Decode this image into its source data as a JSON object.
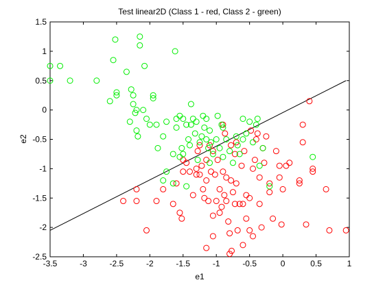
{
  "chart_data": {
    "type": "scatter",
    "title": "Test linear2D (Class 1 - red, Class 2 - green)",
    "xlabel": "e1",
    "ylabel": "e2",
    "xlim": [
      -3.5,
      1
    ],
    "ylim": [
      -2.5,
      1.5
    ],
    "xticks": [
      "-3.5",
      "-3",
      "-2.5",
      "-2",
      "-1.5",
      "-1",
      "-0.5",
      "0",
      "0.5",
      "1"
    ],
    "yticks": [
      "-2.5",
      "-2",
      "-1.5",
      "-1",
      "-0.5",
      "0",
      "0.5",
      "1",
      "1.5"
    ],
    "grid": false,
    "series": [
      {
        "color": "#ff0000",
        "marker": "circle-open",
        "points": [
          [
            -2.4,
            -1.55
          ],
          [
            -2.2,
            -1.55
          ],
          [
            -2.2,
            -1.35
          ],
          [
            -2.05,
            -2.05
          ],
          [
            -1.9,
            -1.55
          ],
          [
            -1.8,
            -1.35
          ],
          [
            -1.65,
            -1.6
          ],
          [
            -1.6,
            -1.25
          ],
          [
            -1.55,
            -1.75
          ],
          [
            -1.52,
            -1.85
          ],
          [
            -1.5,
            -1.05
          ],
          [
            -1.5,
            -0.85
          ],
          [
            -1.45,
            -0.9
          ],
          [
            -1.4,
            -1.05
          ],
          [
            -1.35,
            -1.45
          ],
          [
            -1.3,
            -1.1
          ],
          [
            -1.3,
            -1.0
          ],
          [
            -1.28,
            -0.7
          ],
          [
            -1.25,
            -1.1
          ],
          [
            -1.25,
            -0.6
          ],
          [
            -1.22,
            -0.95
          ],
          [
            -1.2,
            -1.35
          ],
          [
            -1.18,
            -1.5
          ],
          [
            -1.15,
            -1.2
          ],
          [
            -1.15,
            -0.85
          ],
          [
            -1.15,
            -2.35
          ],
          [
            -1.12,
            -1.55
          ],
          [
            -1.1,
            -0.6
          ],
          [
            -1.08,
            -1.05
          ],
          [
            -1.05,
            -0.7
          ],
          [
            -1.05,
            -1.8
          ],
          [
            -1.05,
            -2.15
          ],
          [
            -1.02,
            -1.1
          ],
          [
            -1.0,
            -1.55
          ],
          [
            -0.98,
            -0.85
          ],
          [
            -0.95,
            -1.35
          ],
          [
            -0.95,
            -1.75
          ],
          [
            -0.92,
            -1.65
          ],
          [
            -0.9,
            -0.25
          ],
          [
            -0.9,
            -1.05
          ],
          [
            -0.88,
            -1.45
          ],
          [
            -0.87,
            -0.4
          ],
          [
            -0.85,
            -1.15
          ],
          [
            -0.85,
            -1.55
          ],
          [
            -0.82,
            -1.9
          ],
          [
            -0.8,
            -2.1
          ],
          [
            -0.8,
            -2.45
          ],
          [
            -0.78,
            -0.6
          ],
          [
            -0.78,
            -1.2
          ],
          [
            -0.77,
            -2.4
          ],
          [
            -0.75,
            -1.4
          ],
          [
            -0.72,
            -0.75
          ],
          [
            -0.72,
            -1.6
          ],
          [
            -0.7,
            -0.55
          ],
          [
            -0.7,
            -1.25
          ],
          [
            -0.68,
            -2.05
          ],
          [
            -0.65,
            -1.6
          ],
          [
            -0.62,
            -0.95
          ],
          [
            -0.6,
            -1.6
          ],
          [
            -0.6,
            -2.3
          ],
          [
            -0.58,
            -0.7
          ],
          [
            -0.55,
            -1.45
          ],
          [
            -0.55,
            -1.85
          ],
          [
            -0.5,
            -1.5
          ],
          [
            -0.5,
            -2.05
          ],
          [
            -0.48,
            -0.35
          ],
          [
            -0.45,
            -1.0
          ],
          [
            -0.45,
            -2.15
          ],
          [
            -0.42,
            -0.85
          ],
          [
            -0.4,
            -0.5
          ],
          [
            -0.38,
            -0.4
          ],
          [
            -0.35,
            -1.15
          ],
          [
            -0.35,
            -1.6
          ],
          [
            -0.32,
            -2.0
          ],
          [
            -0.3,
            -0.65
          ],
          [
            -0.28,
            -0.9
          ],
          [
            -0.25,
            -0.45
          ],
          [
            -0.2,
            -1.25
          ],
          [
            -0.2,
            -1.4
          ],
          [
            -0.15,
            -1.85
          ],
          [
            -0.1,
            -0.7
          ],
          [
            -0.05,
            -0.95
          ],
          [
            -0.05,
            -1.15
          ],
          [
            -0.02,
            -1.95
          ],
          [
            0.0,
            -1.35
          ],
          [
            0.05,
            -0.95
          ],
          [
            0.1,
            -0.9
          ],
          [
            0.25,
            -1.2
          ],
          [
            0.25,
            -1.25
          ],
          [
            0.3,
            -0.25
          ],
          [
            0.3,
            -0.55
          ],
          [
            0.35,
            -1.95
          ],
          [
            0.4,
            0.15
          ],
          [
            0.45,
            -1.0
          ],
          [
            0.45,
            -1.05
          ],
          [
            0.65,
            -1.35
          ],
          [
            0.7,
            -2.05
          ],
          [
            0.95,
            -2.05
          ]
        ]
      },
      {
        "color": "#00ee00",
        "marker": "circle-open",
        "points": [
          [
            -3.5,
            0.75
          ],
          [
            -3.5,
            0.5
          ],
          [
            -3.35,
            0.75
          ],
          [
            -3.2,
            0.5
          ],
          [
            -2.8,
            0.5
          ],
          [
            -2.6,
            0.15
          ],
          [
            -2.55,
            0.85
          ],
          [
            -2.52,
            1.2
          ],
          [
            -2.5,
            0.25
          ],
          [
            -2.5,
            0.3
          ],
          [
            -2.35,
            0.65
          ],
          [
            -2.3,
            -0.2
          ],
          [
            -2.28,
            0.35
          ],
          [
            -2.25,
            0.1
          ],
          [
            -2.25,
            0.25
          ],
          [
            -2.22,
            -0.05
          ],
          [
            -2.2,
            0.0
          ],
          [
            -2.2,
            -0.35
          ],
          [
            -2.18,
            -0.45
          ],
          [
            -2.15,
            1.1
          ],
          [
            -2.15,
            1.25
          ],
          [
            -2.1,
            0.0
          ],
          [
            -2.08,
            0.75
          ],
          [
            -2.05,
            -0.15
          ],
          [
            -2.0,
            -0.25
          ],
          [
            -1.95,
            0.2
          ],
          [
            -1.95,
            0.25
          ],
          [
            -1.9,
            -0.25
          ],
          [
            -1.88,
            -0.65
          ],
          [
            -1.8,
            -0.45
          ],
          [
            -1.75,
            -1.05
          ],
          [
            -1.65,
            -0.75
          ],
          [
            -1.62,
            1.0
          ],
          [
            -1.6,
            -0.15
          ],
          [
            -1.6,
            -0.3
          ],
          [
            -1.55,
            -0.8
          ],
          [
            -1.55,
            -0.1
          ],
          [
            -1.52,
            -0.65
          ],
          [
            -1.5,
            -0.15
          ],
          [
            -1.5,
            -0.75
          ],
          [
            -1.45,
            -0.25
          ],
          [
            -1.42,
            -0.5
          ],
          [
            -1.4,
            -0.6
          ],
          [
            -1.38,
            0.1
          ],
          [
            -1.38,
            -0.25
          ],
          [
            -1.35,
            -0.15
          ],
          [
            -1.32,
            -0.4
          ],
          [
            -1.3,
            -0.2
          ],
          [
            -1.28,
            -0.85
          ],
          [
            -1.25,
            -0.55
          ],
          [
            -1.22,
            -0.45
          ],
          [
            -1.2,
            -0.1
          ],
          [
            -1.18,
            -0.3
          ],
          [
            -1.15,
            -0.15
          ],
          [
            -1.15,
            -0.5
          ],
          [
            -1.12,
            -0.65
          ],
          [
            -1.1,
            -0.9
          ],
          [
            -1.1,
            -0.35
          ],
          [
            -1.08,
            -0.55
          ],
          [
            -1.05,
            -0.75
          ],
          [
            -1.0,
            -0.5
          ],
          [
            -0.98,
            -0.1
          ],
          [
            -0.95,
            -0.65
          ],
          [
            -0.92,
            -0.25
          ],
          [
            -0.9,
            -0.3
          ],
          [
            -0.9,
            -0.8
          ],
          [
            -0.85,
            -0.5
          ],
          [
            -0.8,
            -0.7
          ],
          [
            -0.75,
            -0.9
          ],
          [
            -0.7,
            -0.45
          ],
          [
            -0.68,
            -0.6
          ],
          [
            -0.65,
            -0.75
          ],
          [
            -0.6,
            -0.15
          ],
          [
            -0.6,
            -0.5
          ],
          [
            -0.55,
            -0.4
          ],
          [
            -0.5,
            -0.2
          ],
          [
            -0.45,
            -0.55
          ],
          [
            -0.4,
            -0.25
          ],
          [
            -0.38,
            -0.15
          ],
          [
            -0.35,
            -0.95
          ],
          [
            -0.3,
            -0.65
          ],
          [
            -0.2,
            -1.3
          ],
          [
            -1.75,
            -0.2
          ],
          [
            -1.65,
            -1.25
          ],
          [
            -1.8,
            -1.2
          ],
          [
            -1.45,
            -1.3
          ],
          [
            0.45,
            -0.8
          ]
        ]
      }
    ],
    "lines": [
      {
        "color": "#000000",
        "points": [
          [
            -3.5,
            -2.05
          ],
          [
            0.95,
            0.5
          ]
        ]
      }
    ]
  }
}
